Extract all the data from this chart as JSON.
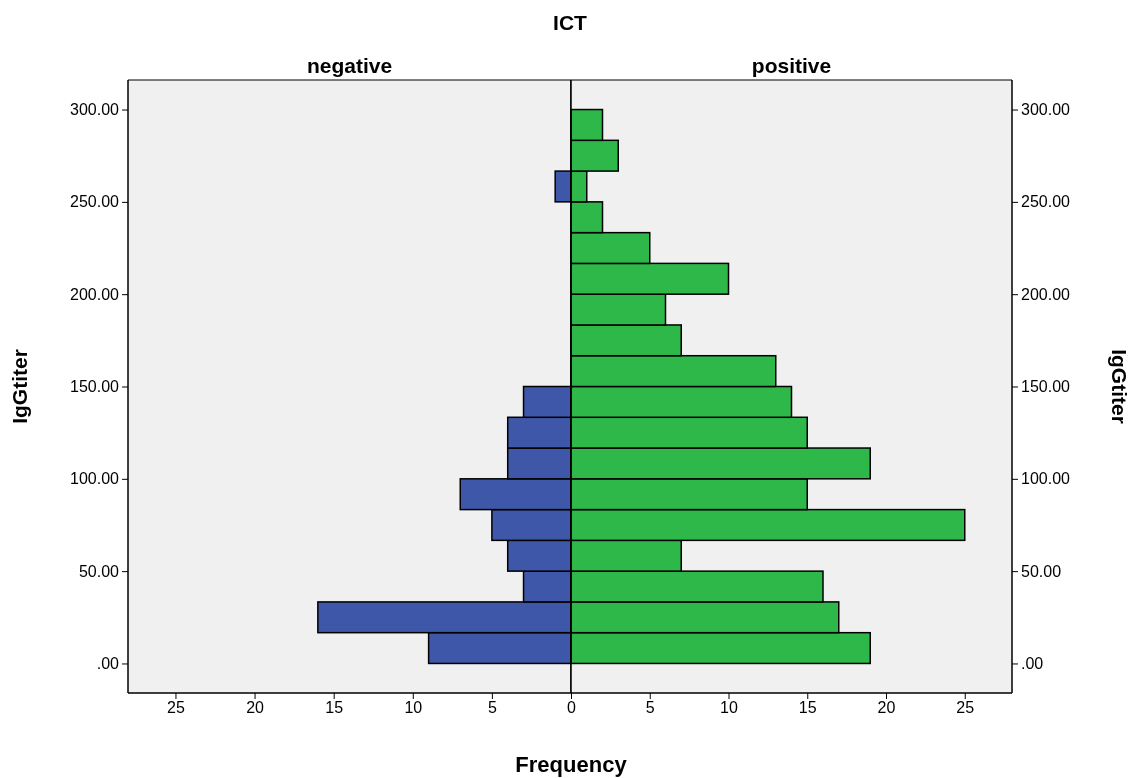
{
  "chart_data": [
    {
      "type": "histogram",
      "orientation": "horizontal",
      "title": "ICT",
      "subtitle": "negative",
      "xlabel": "Frequency",
      "ylabel": "IgGtiter",
      "color": "#3f57a8",
      "bins": [
        0,
        16.67,
        33.33,
        50,
        66.67,
        83.33,
        100,
        116.67,
        133.33,
        150,
        166.67,
        183.33,
        200,
        216.67,
        233.33,
        250,
        266.67,
        283.33,
        300
      ],
      "values": [
        9,
        16,
        3,
        4,
        5,
        7,
        4,
        4,
        3,
        0,
        0,
        0,
        0,
        0,
        0,
        1,
        0,
        0
      ],
      "xlim": [
        28,
        0
      ],
      "xticks": [
        25,
        20,
        15,
        10,
        5,
        0
      ],
      "ylim": [
        -16,
        316
      ],
      "yticks": [
        {
          "value": 0,
          "label": ".00"
        },
        {
          "value": 50,
          "label": "50.00"
        },
        {
          "value": 100,
          "label": "100.00"
        },
        {
          "value": 150,
          "label": "150.00"
        },
        {
          "value": 200,
          "label": "200.00"
        },
        {
          "value": 250,
          "label": "250.00"
        },
        {
          "value": 300,
          "label": "300.00"
        }
      ]
    },
    {
      "type": "histogram",
      "orientation": "horizontal",
      "subtitle": "positive",
      "ylabel": "IgGtiter",
      "color": "#2fb84a",
      "bins": [
        0,
        16.67,
        33.33,
        50,
        66.67,
        83.33,
        100,
        116.67,
        133.33,
        150,
        166.67,
        183.33,
        200,
        216.67,
        233.33,
        250,
        266.67,
        283.33,
        300
      ],
      "values": [
        19,
        17,
        16,
        7,
        25,
        15,
        19,
        15,
        14,
        13,
        7,
        6,
        10,
        5,
        2,
        1,
        3,
        2
      ],
      "xlim": [
        0,
        28
      ],
      "xticks": [
        5,
        10,
        15,
        20,
        25
      ],
      "ylim": [
        -16,
        316
      ],
      "yticks": [
        {
          "value": 0,
          "label": ".00"
        },
        {
          "value": 50,
          "label": "50.00"
        },
        {
          "value": 100,
          "label": "100.00"
        },
        {
          "value": 150,
          "label": "150.00"
        },
        {
          "value": 200,
          "label": "200.00"
        },
        {
          "value": 250,
          "label": "250.00"
        },
        {
          "value": 300,
          "label": "300.00"
        }
      ]
    }
  ]
}
